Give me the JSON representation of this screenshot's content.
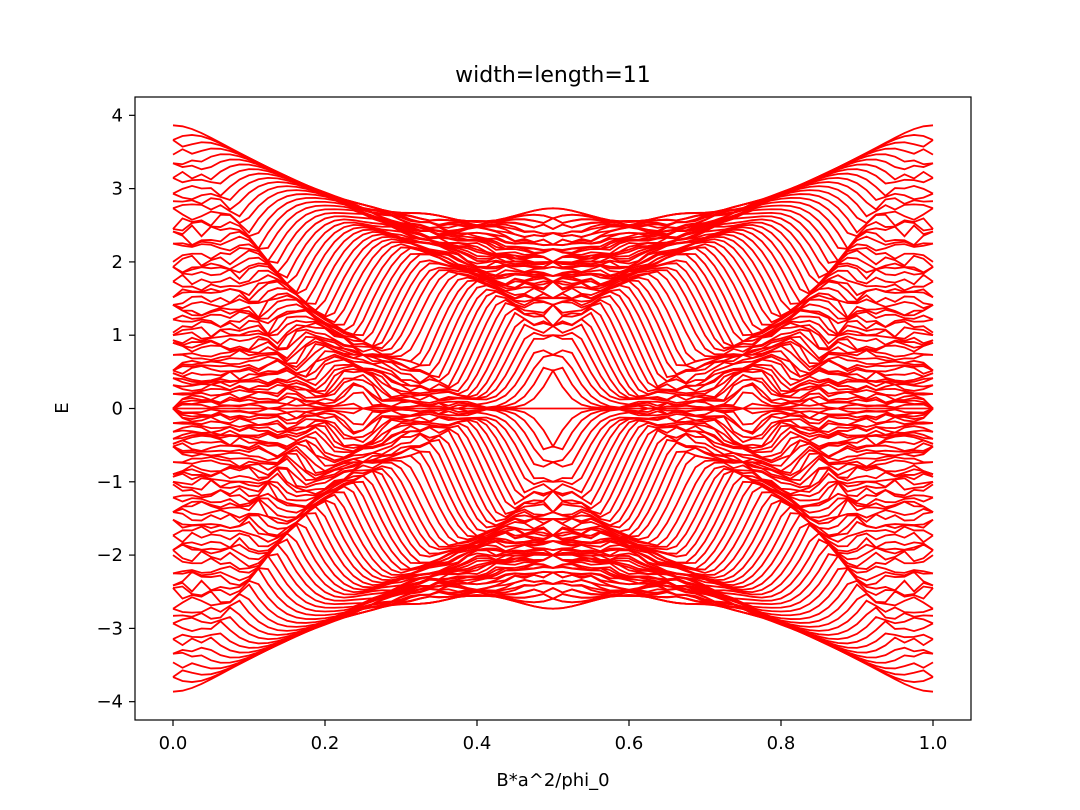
{
  "chart_data": {
    "type": "line",
    "title": "width=length=11",
    "xlabel": "B*a^2/phi_0",
    "ylabel": "E",
    "xlim": [
      -0.05,
      1.05
    ],
    "ylim": [
      -4.25,
      4.25
    ],
    "xticks": [
      0.0,
      0.2,
      0.4,
      0.6,
      0.8,
      1.0
    ],
    "xtick_labels": [
      "0.0",
      "0.2",
      "0.4",
      "0.6",
      "0.8",
      "1.0"
    ],
    "yticks": [
      -4,
      -3,
      -2,
      -1,
      0,
      1,
      2,
      3,
      4
    ],
    "ytick_labels": [
      "−4",
      "−3",
      "−2",
      "−1",
      "0",
      "1",
      "2",
      "3",
      "4"
    ],
    "grid": false,
    "legend": "none",
    "color": "#ff0000",
    "x_range": [
      0.0,
      1.0
    ],
    "series_description_values": {
      "band_edge_max_at_x0": 3.86,
      "band_edge_max_at_x05": 2.72,
      "band_edge_min_at_x0": -3.86,
      "band_edge_min_at_x05": -2.72,
      "inner_gap_level_at_x05": 0.75,
      "zero_mode_level": 0.0
    }
  }
}
